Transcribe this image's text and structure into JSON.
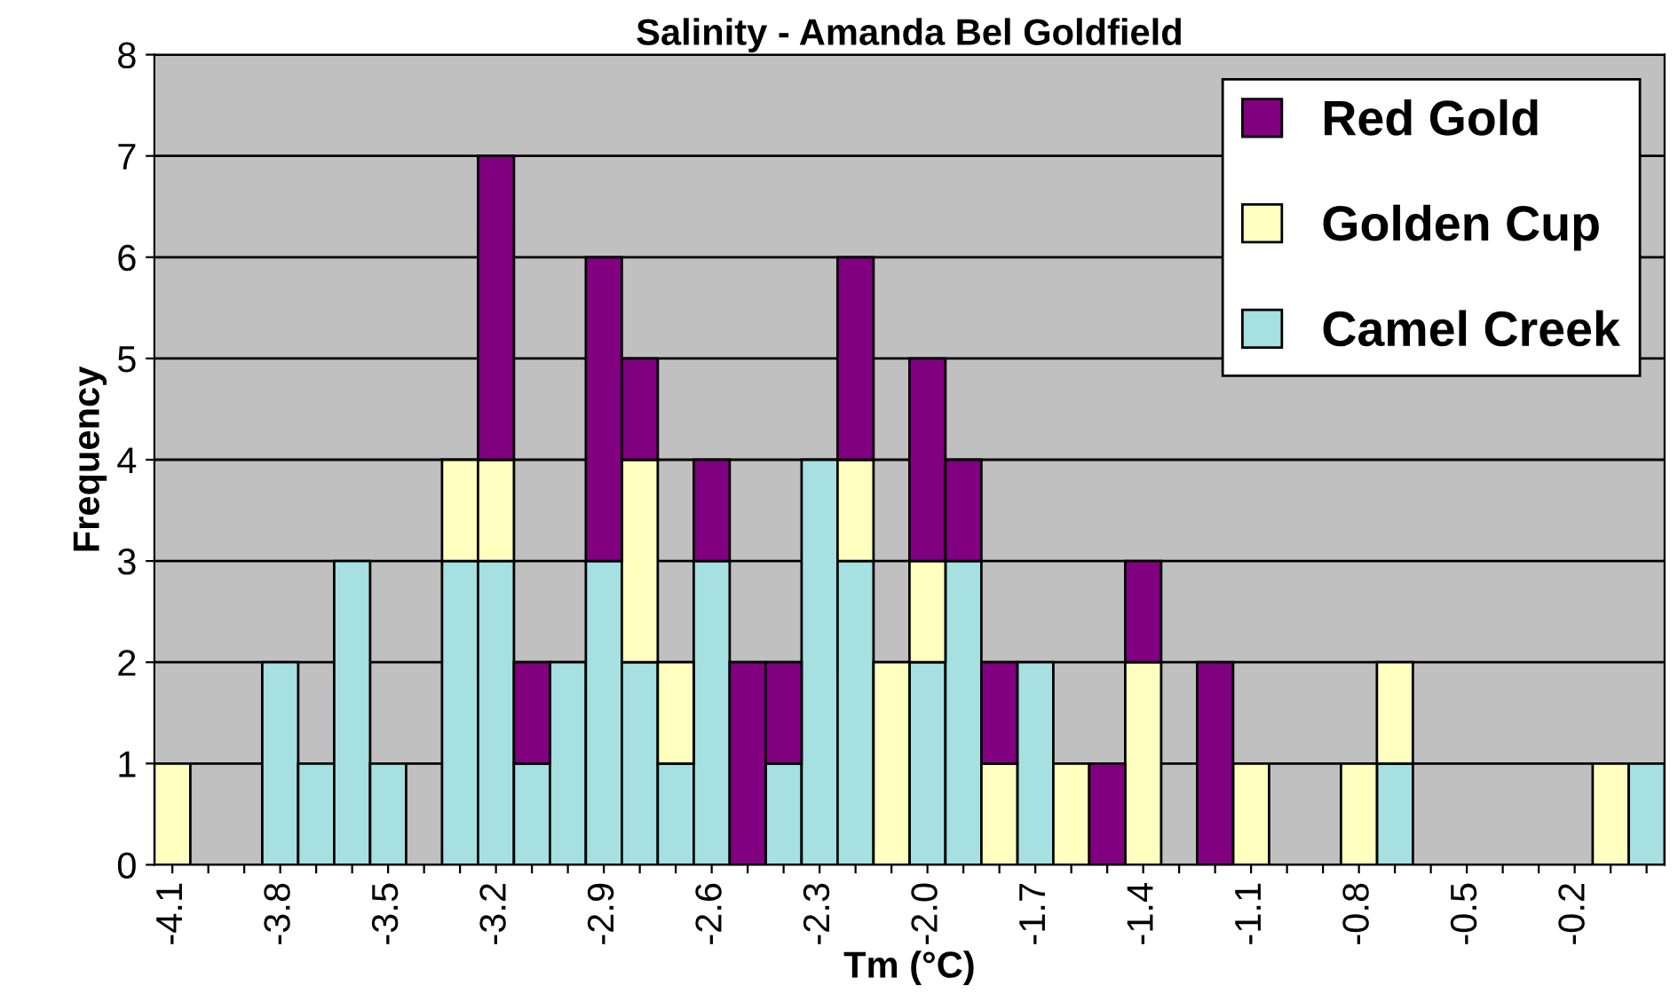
{
  "chart_data": {
    "type": "bar",
    "title": "Salinity - Amanda Bel Goldfield",
    "xlabel": "Tm (°C)",
    "ylabel": "Frequency",
    "categories": [
      "-4.1",
      null,
      null,
      "-3.8",
      null,
      null,
      "-3.5",
      null,
      null,
      "-3.2",
      null,
      null,
      "-2.9",
      null,
      null,
      "-2.6",
      null,
      null,
      "-2.3",
      null,
      null,
      "-2.0",
      null,
      null,
      "-1.7",
      null,
      null,
      "-1.4",
      null,
      null,
      "-1.1",
      null,
      null,
      "-0.8",
      null,
      null,
      "-0.5",
      null,
      null,
      "-0.2",
      null,
      null
    ],
    "series": [
      {
        "name": "Camel Creek",
        "color": "#a6e0e0",
        "values": [
          0,
          0,
          0,
          2,
          1,
          3,
          1,
          0,
          3,
          3,
          1,
          2,
          3,
          2,
          1,
          3,
          0,
          1,
          4,
          3,
          0,
          2,
          3,
          0,
          2,
          0,
          0,
          0,
          0,
          0,
          0,
          0,
          0,
          0,
          1,
          0,
          0,
          0,
          0,
          0,
          0,
          1
        ]
      },
      {
        "name": "Golden Cup",
        "color": "#ffffc0",
        "values": [
          1,
          0,
          0,
          0,
          0,
          0,
          0,
          0,
          1,
          1,
          0,
          0,
          0,
          2,
          1,
          0,
          0,
          0,
          0,
          1,
          2,
          1,
          0,
          1,
          0,
          1,
          0,
          2,
          0,
          0,
          1,
          0,
          0,
          1,
          1,
          0,
          0,
          0,
          0,
          0,
          1,
          0
        ]
      },
      {
        "name": "Red Gold",
        "color": "#800080",
        "values": [
          0,
          0,
          0,
          0,
          0,
          0,
          0,
          0,
          0,
          3,
          1,
          0,
          3,
          1,
          0,
          1,
          2,
          1,
          0,
          2,
          0,
          2,
          1,
          1,
          0,
          0,
          1,
          1,
          0,
          2,
          0,
          0,
          0,
          0,
          0,
          0,
          0,
          0,
          0,
          0,
          0,
          0
        ]
      }
    ],
    "stacked": true,
    "ylim": [
      0,
      8
    ],
    "yticks": [
      0,
      1,
      2,
      3,
      4,
      5,
      6,
      7,
      8
    ],
    "grid": "y",
    "legend": "top right"
  }
}
